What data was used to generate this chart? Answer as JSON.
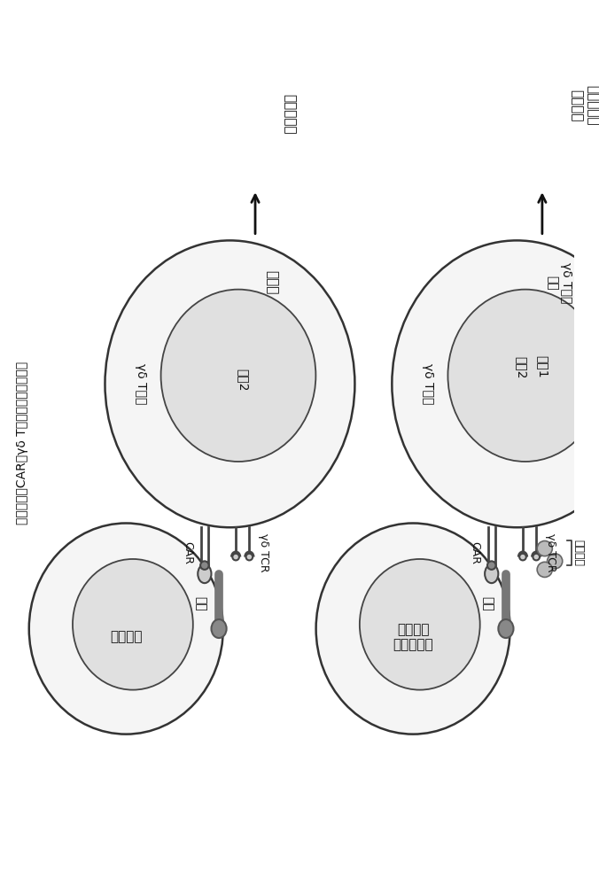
{
  "title": "表达共刺激CAR的γδ T细胞的细胞毒性机制",
  "panel1": {
    "target_cell_label": "健康细胞",
    "tcell_label": "γδ T细胞",
    "signal2_label": "信号2",
    "car_label": "CAR",
    "tcr_label": "γδ TCR",
    "antigen_label": "抗原",
    "inactivate_label": "无活化",
    "outcome_label": "无细胞毒性"
  },
  "panel2": {
    "target_cell_label": "癌细胞或\n感染的细胞",
    "tcell_label": "γδ T细胞",
    "signal1_label": "信号1",
    "signal2_label": "信号2",
    "car_label": "CAR",
    "tcr_label": "γδ TCR",
    "antigen_label": "抗原",
    "phospho_label": "磷酸抗原",
    "activate_label": "活化",
    "tcell_activate_label": "γδ T细胞\n活化",
    "outcome_label": "细胞个号的\n细胞毒性"
  },
  "bg_color": "#ffffff",
  "cell_face": "#f5f5f5",
  "cell_edge": "#333333",
  "nucleus_face": "#e0e0e0",
  "nucleus_edge": "#444444",
  "receptor_color": "#555555",
  "antigen_color": "#888888",
  "phospho_color": "#aaaaaa",
  "arrow_color": "#111111",
  "text_color": "#111111"
}
